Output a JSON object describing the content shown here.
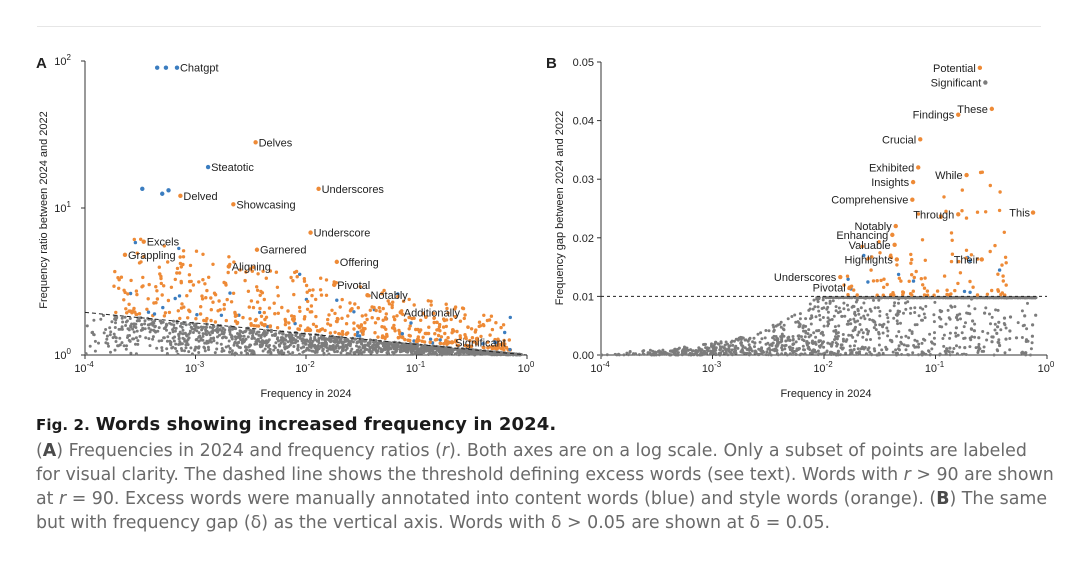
{
  "colors": {
    "style": "#ee8a36",
    "content": "#3b7dc0",
    "other": "#7c7c7c"
  },
  "chart_data": [
    {
      "panel": "A",
      "type": "scatter",
      "xlabel": "Frequency in 2024",
      "ylabel": "Frequency ratio between 2024 and 2022",
      "xscale": "log",
      "yscale": "log",
      "xlim": [
        0.0001,
        1
      ],
      "ylim": [
        1,
        100
      ],
      "xticks": [
        {
          "base": "10",
          "exp": "-4"
        },
        {
          "base": "10",
          "exp": "-3"
        },
        {
          "base": "10",
          "exp": "-2"
        },
        {
          "base": "10",
          "exp": "-1"
        },
        {
          "base": "10",
          "exp": "0"
        }
      ],
      "yticks": [
        {
          "base": "10",
          "exp": "0"
        },
        {
          "base": "10",
          "exp": "1"
        },
        {
          "base": "10",
          "exp": "2"
        }
      ],
      "threshold": {
        "x": [
          0.0001,
          1
        ],
        "y": [
          1.95,
          1.0
        ]
      },
      "labeled_points": [
        {
          "label": "Chatgpt",
          "x": 0.00068,
          "y": 90,
          "cat": "content"
        },
        {
          "label": "",
          "x": 0.00045,
          "y": 90,
          "cat": "content"
        },
        {
          "label": "",
          "x": 0.00054,
          "y": 90,
          "cat": "content"
        },
        {
          "label": "Delves",
          "x": 0.0035,
          "y": 28,
          "cat": "style"
        },
        {
          "label": "Steatotic",
          "x": 0.0013,
          "y": 19,
          "cat": "content"
        },
        {
          "label": "Underscores",
          "x": 0.013,
          "y": 13.5,
          "cat": "style"
        },
        {
          "label": "Delved",
          "x": 0.00073,
          "y": 12.1,
          "cat": "style"
        },
        {
          "label": "Showcasing",
          "x": 0.0022,
          "y": 10.6,
          "cat": "style"
        },
        {
          "label": "Underscore",
          "x": 0.011,
          "y": 6.8,
          "cat": "style"
        },
        {
          "label": "Excels",
          "x": 0.00034,
          "y": 5.9,
          "cat": "style"
        },
        {
          "label": "Garnered",
          "x": 0.0036,
          "y": 5.2,
          "cat": "style"
        },
        {
          "label": "Grappling",
          "x": 0.00023,
          "y": 4.8,
          "cat": "style"
        },
        {
          "label": "Offering",
          "x": 0.019,
          "y": 4.3,
          "cat": "style"
        },
        {
          "label": "Aligning",
          "x": 0.002,
          "y": 4.0,
          "cat": "style"
        },
        {
          "label": "Pivotal",
          "x": 0.018,
          "y": 3.0,
          "cat": "style"
        },
        {
          "label": "Notably",
          "x": 0.036,
          "y": 2.55,
          "cat": "style"
        },
        {
          "label": "Additionally",
          "x": 0.072,
          "y": 1.95,
          "cat": "style"
        },
        {
          "label": "Significant",
          "x": 0.21,
          "y": 1.22,
          "cat": "style"
        },
        {
          "label": "",
          "x": 0.00033,
          "y": 13.5,
          "cat": "content"
        },
        {
          "label": "",
          "x": 0.0005,
          "y": 12.5,
          "cat": "content"
        },
        {
          "label": "",
          "x": 0.00057,
          "y": 13.2,
          "cat": "content"
        }
      ]
    },
    {
      "panel": "B",
      "type": "scatter",
      "xlabel": "Frequency in 2024",
      "ylabel": "Frequency gap between 2024 and 2022",
      "xscale": "log",
      "yscale": "linear",
      "xlim": [
        0.0001,
        1
      ],
      "ylim": [
        0,
        0.05
      ],
      "xticks": [
        {
          "base": "10",
          "exp": "-4"
        },
        {
          "base": "10",
          "exp": "-3"
        },
        {
          "base": "10",
          "exp": "-2"
        },
        {
          "base": "10",
          "exp": "-1"
        },
        {
          "base": "10",
          "exp": "0"
        }
      ],
      "yticks": [
        "0.00",
        "0.01",
        "0.02",
        "0.03",
        "0.04",
        "0.05"
      ],
      "threshold": {
        "y": 0.01
      },
      "labeled_points": [
        {
          "label": "Potential",
          "x": 0.25,
          "y": 0.049,
          "cat": "style"
        },
        {
          "label": "Significant",
          "x": 0.28,
          "y": 0.0465,
          "cat": "other"
        },
        {
          "label": "These",
          "x": 0.32,
          "y": 0.042,
          "cat": "style"
        },
        {
          "label": "Findings",
          "x": 0.16,
          "y": 0.041,
          "cat": "style"
        },
        {
          "label": "Crucial",
          "x": 0.073,
          "y": 0.0368,
          "cat": "style"
        },
        {
          "label": "Exhibited",
          "x": 0.07,
          "y": 0.032,
          "cat": "style"
        },
        {
          "label": "While",
          "x": 0.19,
          "y": 0.0307,
          "cat": "style"
        },
        {
          "label": "Insights",
          "x": 0.063,
          "y": 0.0295,
          "cat": "style"
        },
        {
          "label": "Comprehensive",
          "x": 0.062,
          "y": 0.0265,
          "cat": "style"
        },
        {
          "label": "This",
          "x": 0.75,
          "y": 0.0243,
          "cat": "style"
        },
        {
          "label": "Through",
          "x": 0.16,
          "y": 0.024,
          "cat": "style"
        },
        {
          "label": "Notably",
          "x": 0.044,
          "y": 0.022,
          "cat": "style"
        },
        {
          "label": "Enhancing",
          "x": 0.041,
          "y": 0.0205,
          "cat": "style"
        },
        {
          "label": "Valuable",
          "x": 0.043,
          "y": 0.0188,
          "cat": "style"
        },
        {
          "label": "Highlights",
          "x": 0.045,
          "y": 0.0163,
          "cat": "style"
        },
        {
          "label": "Their",
          "x": 0.26,
          "y": 0.0163,
          "cat": "style"
        },
        {
          "label": "Underscores",
          "x": 0.014,
          "y": 0.0133,
          "cat": "style"
        },
        {
          "label": "Pivotal",
          "x": 0.017,
          "y": 0.0115,
          "cat": "style"
        }
      ]
    }
  ],
  "panels": {
    "a": {
      "letter": "A",
      "xlabel": "Frequency in 2024",
      "ylabel": "Frequency ratio between 2024 and 2022"
    },
    "b": {
      "letter": "B",
      "xlabel": "Frequency in 2024",
      "ylabel": "Frequency gap between 2024 and 2022"
    }
  },
  "caption": {
    "fig_label": "Fig. 2.",
    "title": "Words showing increased frequency in 2024.",
    "open_a": "(",
    "letter_a": "A",
    "text_a_1": ") Frequencies in 2024 and frequency ratios (",
    "r1": "r",
    "text_a_2": "). Both axes are on a log scale. Only a subset of points are labeled for visual clarity. The dashed line shows the threshold defining excess words (see text). Words with ",
    "r2": "r",
    "text_a_3": " > 90 are shown at ",
    "r3": "r",
    "text_a_4": " = 90. Excess words were manually annotated into content words (blue) and style words (orange). (",
    "letter_b": "B",
    "text_b": ") The same but with frequency gap (δ) as the vertical axis. Words with δ > 0.05 are shown at δ = 0.05."
  }
}
